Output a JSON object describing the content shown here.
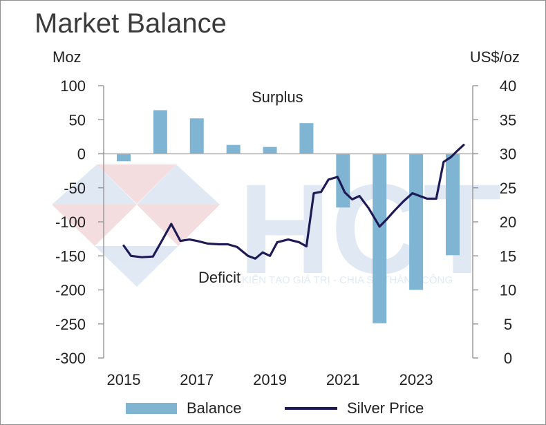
{
  "title": "Market Balance",
  "chart_data": {
    "type": "bar",
    "left_axis_label": "Moz",
    "right_axis_label": "US$/oz",
    "left_ylim": [
      -300,
      100
    ],
    "right_ylim": [
      0,
      40
    ],
    "left_ticks": [
      "100",
      "50",
      "0",
      "-50",
      "-100",
      "-150",
      "-200",
      "-250",
      "-300"
    ],
    "right_ticks": [
      "40",
      "35",
      "30",
      "25",
      "20",
      "15",
      "10",
      "5",
      "0"
    ],
    "x_ticks": [
      {
        "label": "2015",
        "x": 2015
      },
      {
        "label": "2017",
        "x": 2017
      },
      {
        "label": "2019",
        "x": 2019
      },
      {
        "label": "2021",
        "x": 2021
      },
      {
        "label": "2023",
        "x": 2023
      }
    ],
    "annotations": {
      "surplus": "Surplus",
      "deficit": "Deficit"
    },
    "watermark": {
      "logo": "HCT",
      "tagline": "KIẾN TẠO GIÁ TRỊ - CHIA SẺ THÀNH CÔNG"
    },
    "series": [
      {
        "name": "Balance",
        "type": "bar",
        "axis": "left",
        "color": "#7fb5d2",
        "x": [
          2015,
          2016,
          2017,
          2018,
          2019,
          2020,
          2021,
          2022,
          2023,
          2024
        ],
        "values": [
          -11,
          64,
          52,
          13,
          10,
          45,
          -79,
          -249,
          -200,
          -149
        ]
      },
      {
        "name": "Silver Price",
        "type": "line",
        "axis": "right",
        "color": "#1d1a55",
        "x": [
          2015.0,
          2015.2,
          2015.5,
          2015.8,
          2016.0,
          2016.3,
          2016.55,
          2016.8,
          2017.0,
          2017.3,
          2017.6,
          2017.85,
          2018.1,
          2018.4,
          2018.6,
          2018.8,
          2019.0,
          2019.2,
          2019.5,
          2019.8,
          2020.0,
          2020.2,
          2020.4,
          2020.6,
          2020.85,
          2021.05,
          2021.25,
          2021.45,
          2021.7,
          2022.0,
          2022.2,
          2022.4,
          2022.65,
          2022.9,
          2023.1,
          2023.3,
          2023.55,
          2023.75,
          2023.95,
          2024.1,
          2024.3
        ],
        "values": [
          16.5,
          15.0,
          14.8,
          14.9,
          16.8,
          19.7,
          17.2,
          17.4,
          17.2,
          16.8,
          16.7,
          16.7,
          16.3,
          15.0,
          14.6,
          15.5,
          15.0,
          17.0,
          17.4,
          17.0,
          16.4,
          24.2,
          24.4,
          26.2,
          26.6,
          24.3,
          23.3,
          23.8,
          22.0,
          19.3,
          20.4,
          21.6,
          23.0,
          24.2,
          23.8,
          23.4,
          23.4,
          28.8,
          29.5,
          30.3,
          31.3
        ]
      }
    ]
  },
  "legend": {
    "balance_label": "Balance",
    "price_label": "Silver Price"
  }
}
